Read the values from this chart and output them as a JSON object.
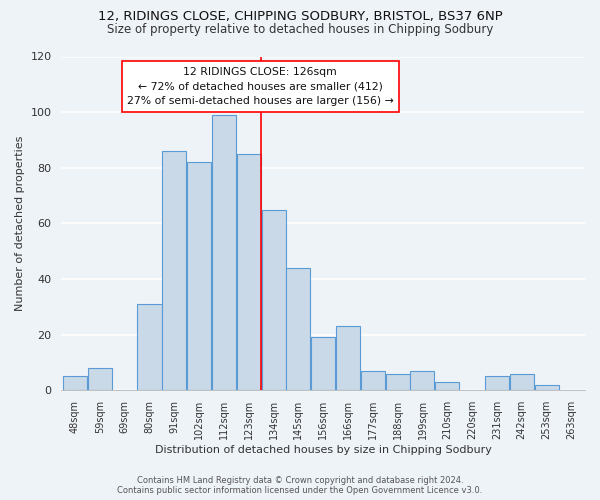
{
  "title1": "12, RIDINGS CLOSE, CHIPPING SODBURY, BRISTOL, BS37 6NP",
  "title2": "Size of property relative to detached houses in Chipping Sodbury",
  "xlabel": "Distribution of detached houses by size in Chipping Sodbury",
  "ylabel": "Number of detached properties",
  "bin_labels": [
    "48sqm",
    "59sqm",
    "69sqm",
    "80sqm",
    "91sqm",
    "102sqm",
    "112sqm",
    "123sqm",
    "134sqm",
    "145sqm",
    "156sqm",
    "166sqm",
    "177sqm",
    "188sqm",
    "199sqm",
    "210sqm",
    "220sqm",
    "231sqm",
    "242sqm",
    "253sqm",
    "263sqm"
  ],
  "bar_heights": [
    5,
    8,
    0,
    31,
    86,
    82,
    99,
    85,
    65,
    44,
    19,
    23,
    7,
    6,
    7,
    3,
    0,
    5,
    6,
    2,
    0
  ],
  "bar_color": "#c9d9e8",
  "bar_edge_color": "#5b9bd5",
  "bar_edge_width": 0.8,
  "vline_color": "red",
  "annotation_line1": "12 RIDINGS CLOSE: 126sqm",
  "annotation_line2": "← 72% of detached houses are smaller (412)",
  "annotation_line3": "27% of semi-detached houses are larger (156) →",
  "box_edge_color": "red",
  "footnote1": "Contains HM Land Registry data © Crown copyright and database right 2024.",
  "footnote2": "Contains public sector information licensed under the Open Government Licence v3.0.",
  "bg_color": "#eef3f8",
  "ylim": [
    0,
    120
  ],
  "title1_fontsize": 9.5,
  "title2_fontsize": 8.5
}
